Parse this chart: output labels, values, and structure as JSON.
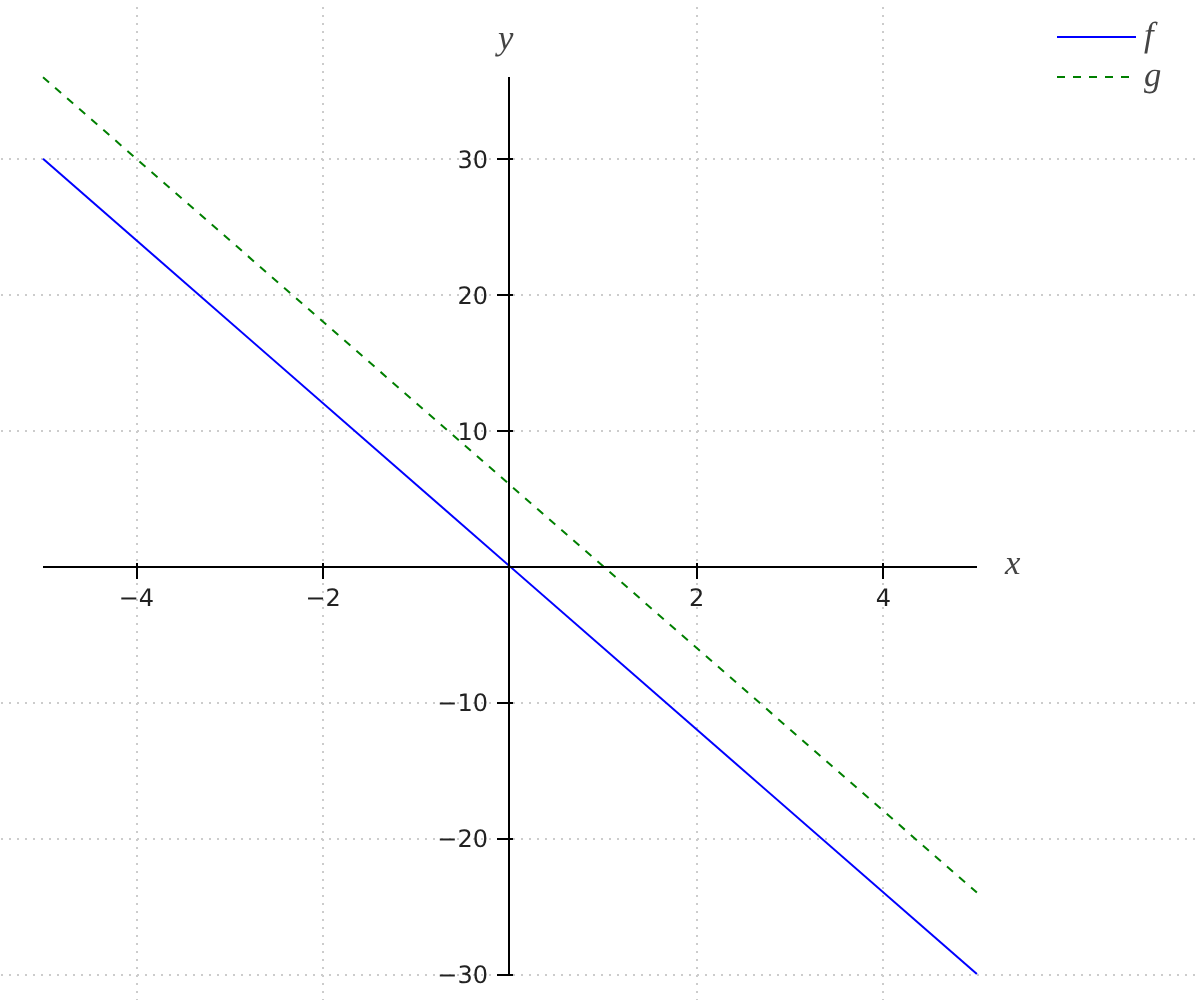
{
  "chart_data": {
    "type": "line",
    "xlabel": "x",
    "ylabel": "y",
    "x": [
      -5,
      5
    ],
    "series": [
      {
        "name": "f",
        "color": "#0000ff",
        "values": [
          30,
          -30
        ],
        "line_style": "solid"
      },
      {
        "name": "g",
        "color": "#007f00",
        "values": [
          36,
          -24
        ],
        "line_style": "dashed"
      }
    ],
    "xlim": [
      -5,
      5
    ],
    "ylim": [
      -30,
      36
    ],
    "xticks": [
      -4,
      -2,
      2,
      4
    ],
    "yticks": [
      -30,
      -20,
      -10,
      10,
      20,
      30
    ],
    "grid": true,
    "legend": "top right",
    "marker": "none"
  }
}
